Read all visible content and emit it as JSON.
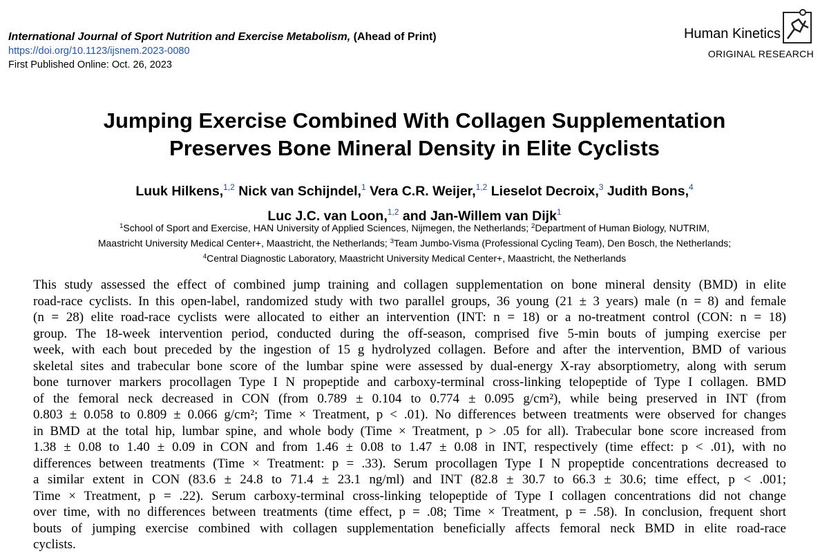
{
  "header": {
    "journal": "International Journal of Sport Nutrition and Exercise Metabolism,",
    "status": "(Ahead of Print)",
    "doi": "https://doi.org/10.1123/ijsnem.2023-0080",
    "published": "First Published Online: Oct. 26, 2023",
    "publisher": "Human Kinetics",
    "article_type": "ORIGINAL RESEARCH"
  },
  "title": [
    "Jumping Exercise Combined With Collagen Supplementation",
    "Preserves Bone Mineral Density in Elite Cyclists"
  ],
  "authors": [
    {
      "name": "Luuk Hilkens,",
      "sup": "1,2"
    },
    {
      "name": "Nick van Schijndel,",
      "sup": "1"
    },
    {
      "name": "Vera C.R. Weijer,",
      "sup": "1,2"
    },
    {
      "name": "Lieselot Decroix,",
      "sup": "3"
    },
    {
      "name": "Judith Bons,",
      "sup": "4"
    },
    {
      "name": "Luc J.C. van Loon,",
      "sup": "1,2"
    },
    {
      "name": "and Jan-Willem van Dijk",
      "sup": "1"
    }
  ],
  "affiliations": [
    {
      "sup": "1",
      "text": "School of Sport and Exercise, HAN University of Applied Sciences, Nijmegen, the Netherlands;"
    },
    {
      "sup": "2",
      "text": "Department of Human Biology, NUTRIM,"
    },
    {
      "sup": "",
      "text": "Maastricht University Medical Center+, Maastricht, the Netherlands;"
    },
    {
      "sup": "3",
      "text": "Team Jumbo-Visma (Professional Cycling Team), Den Bosch, the Netherlands;"
    },
    {
      "sup": "4",
      "text": "Central Diagnostic Laboratory, Maastricht University Medical Center+, Maastricht, the Netherlands"
    }
  ],
  "abstract_lines": [
    "This study assessed the effect of combined jump training and collagen supplementation on bone mineral density (BMD) in elite",
    "road-race cyclists. In this open-label, randomized study with two parallel groups, 36 young (21 ± 3 years) male (n = 8) and female",
    "(n = 28) elite road-race cyclists were allocated to either an intervention (INT: n = 18) or a no-treatment control (CON: n = 18)",
    "group. The 18-week intervention period, conducted during the off-season, comprised five 5-min bouts of jumping exercise per",
    "week, with each bout preceded by the ingestion of 15 g hydrolyzed collagen. Before and after the intervention, BMD of various",
    "skeletal sites and trabecular bone score of the lumbar spine were assessed by dual-energy X-ray absorptiometry, along with serum",
    "bone turnover markers procollagen Type I N propeptide and carboxy-terminal cross-linking telopeptide of Type I collagen. BMD",
    "of the femoral neck decreased in CON (from 0.789 ± 0.104 to 0.774 ± 0.095 g/cm²), while being preserved in INT (from",
    "0.803 ± 0.058 to 0.809 ± 0.066 g/cm²; Time × Treatment, p < .01). No differences between treatments were observed for changes",
    "in BMD at the total hip, lumbar spine, and whole body (Time × Treatment, p > .05 for all). Trabecular bone score increased from",
    "1.38 ± 0.08 to 1.40 ± 0.09 in CON and from 1.46 ± 0.08 to 1.47 ± 0.08 in INT, respectively (time effect: p < .01), with no",
    "differences between treatments (Time × Treatment: p = .33). Serum procollagen Type I N propeptide concentrations decreased to",
    "a similar extent in CON (83.6 ± 24.8 to 71.4 ± 23.1 ng/ml) and INT (82.8 ± 30.7 to 66.3 ± 30.6; time effect, p < .001;",
    "Time × Treatment, p = .22). Serum carboxy-terminal cross-linking telopeptide of Type I collagen concentrations did not change",
    "over time, with no differences between treatments (time effect, p = .08; Time × Treatment, p = .58). In conclusion, frequent short",
    "bouts of jumping exercise combined with collagen supplementation beneficially affects femoral neck BMD in elite road-race",
    "cyclists."
  ]
}
